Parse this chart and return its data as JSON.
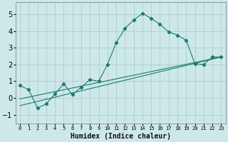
{
  "xlabel": "Humidex (Indice chaleur)",
  "xlim": [
    -0.5,
    23.5
  ],
  "ylim": [
    -1.5,
    5.7
  ],
  "yticks": [
    -1,
    0,
    1,
    2,
    3,
    4,
    5
  ],
  "xticks": [
    0,
    1,
    2,
    3,
    4,
    5,
    6,
    7,
    8,
    9,
    10,
    11,
    12,
    13,
    14,
    15,
    16,
    17,
    18,
    19,
    20,
    21,
    22,
    23
  ],
  "bg_color": "#cce8e8",
  "grid_color": "#b0cccc",
  "line_color": "#1a7a6e",
  "main_x": [
    0,
    1,
    2,
    3,
    4,
    5,
    6,
    7,
    8,
    9,
    10,
    11,
    12,
    13,
    14,
    15,
    16,
    17,
    18,
    19,
    20,
    21,
    22,
    23
  ],
  "main_y": [
    0.75,
    0.5,
    -0.6,
    -0.35,
    0.25,
    0.85,
    0.2,
    0.65,
    1.1,
    1.0,
    2.0,
    3.3,
    4.15,
    4.65,
    5.05,
    4.75,
    4.4,
    3.95,
    3.75,
    3.45,
    2.05,
    2.0,
    2.45,
    2.45
  ],
  "trend1_x": [
    0,
    23
  ],
  "trend1_y": [
    -0.05,
    2.45
  ],
  "trend2_x": [
    0,
    23
  ],
  "trend2_y": [
    -0.45,
    2.45
  ],
  "xlabel_fontsize": 7,
  "xlabel_fontweight": "bold",
  "ytick_fontsize": 7,
  "xtick_fontsize": 5
}
